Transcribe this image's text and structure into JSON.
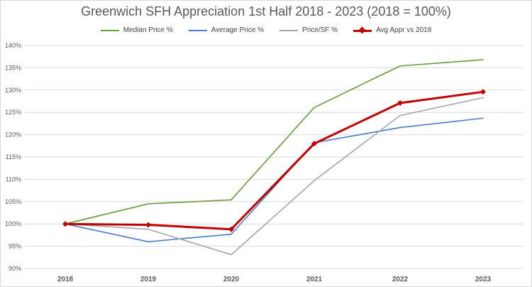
{
  "chart_data": {
    "type": "line",
    "title": "Greenwich SFH Appreciation 1st Half 2018 - 2023   (2018 = 100%)",
    "categories": [
      "2018",
      "2019",
      "2020",
      "2021",
      "2022",
      "2023"
    ],
    "ylim": [
      0.9,
      1.4
    ],
    "yticks": [
      "90%",
      "95%",
      "100%",
      "105%",
      "110%",
      "115%",
      "120%",
      "125%",
      "130%",
      "135%",
      "140%"
    ],
    "ytick_values": [
      0.9,
      0.95,
      1.0,
      1.05,
      1.1,
      1.15,
      1.2,
      1.25,
      1.3,
      1.35,
      1.4
    ],
    "grid": true,
    "legend_position": "top",
    "series": [
      {
        "name": "Median Price %",
        "color": "#6a9a3c",
        "width": 1.6,
        "marker": false,
        "values": [
          1.0,
          1.045,
          1.054,
          1.261,
          1.354,
          1.368
        ]
      },
      {
        "name": "Average Price %",
        "color": "#4a7bc8",
        "width": 1.6,
        "marker": false,
        "values": [
          1.0,
          0.96,
          0.977,
          1.182,
          1.216,
          1.237
        ]
      },
      {
        "name": "Price/SF %",
        "color": "#a6a6a6",
        "width": 1.6,
        "marker": false,
        "values": [
          1.0,
          0.988,
          0.931,
          1.097,
          1.243,
          1.283
        ]
      },
      {
        "name": "Avg Appr vs 2018",
        "color": "#c00000",
        "width": 3,
        "marker": true,
        "values": [
          1.0,
          0.998,
          0.988,
          1.18,
          1.271,
          1.296
        ]
      }
    ]
  }
}
